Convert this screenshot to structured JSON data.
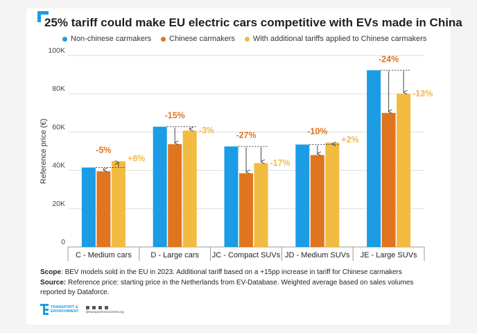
{
  "title": "25% tariff could make EU electric cars competitive with EVs made in China",
  "colors": {
    "accent": "#1b9ce5",
    "series": [
      "#1b9ce5",
      "#e0751f",
      "#f2bb41"
    ]
  },
  "chart_data": {
    "type": "bar",
    "title": "25% tariff could make EU electric cars competitive with EVs made in China",
    "xlabel": "",
    "ylabel": "Reference price (€)",
    "ylim": [
      0,
      100000
    ],
    "yticks": [
      0,
      20000,
      40000,
      60000,
      80000,
      100000
    ],
    "ytick_labels": [
      "0",
      "20K",
      "40K",
      "60K",
      "80K",
      "100K"
    ],
    "grid": true,
    "legend": "top",
    "categories": [
      "C - Medium cars",
      "D - Large cars",
      "JC - Compact SUVs",
      "JD - Medium SUVs",
      "JE - Large SUVs"
    ],
    "series": [
      {
        "name": "Non-chinese carmakers",
        "color": "#1b9ce5",
        "values": [
          41500,
          62800,
          52500,
          53500,
          92300
        ]
      },
      {
        "name": "Chinese carmakers",
        "color": "#e0751f",
        "values": [
          39500,
          53700,
          38500,
          48000,
          70000
        ]
      },
      {
        "name": "With additional tariffs applied to Chinese carmakers",
        "color": "#f2bb41",
        "values": [
          44800,
          60800,
          43800,
          54500,
          80000
        ]
      }
    ],
    "annotations": {
      "chinese": [
        "-5%",
        "-15%",
        "-27%",
        "-10%",
        "-24%"
      ],
      "tariff": [
        "+8%",
        "-3%",
        "-17%",
        "+2%",
        "-13%"
      ]
    }
  },
  "notes": {
    "scope_label": "Scope",
    "scope_text": ": BEV models sold in the EU in 2023. Additional tariff based on a +15pp increase in tariff for Chinese carmakers",
    "source_label": "Source:",
    "source_text": " Reference price: starting price in the Netherlands from EV-Database. Weighted average based on sales volumes reported by Dataforce."
  },
  "footer": {
    "logo_line1": "TRANSPORT &",
    "logo_line2": "ENVIRONMENT",
    "handle": "@transportenvironment.org",
    "icons": [
      "twitter-icon",
      "facebook-icon",
      "linkedin-icon",
      "instagram-icon"
    ]
  }
}
